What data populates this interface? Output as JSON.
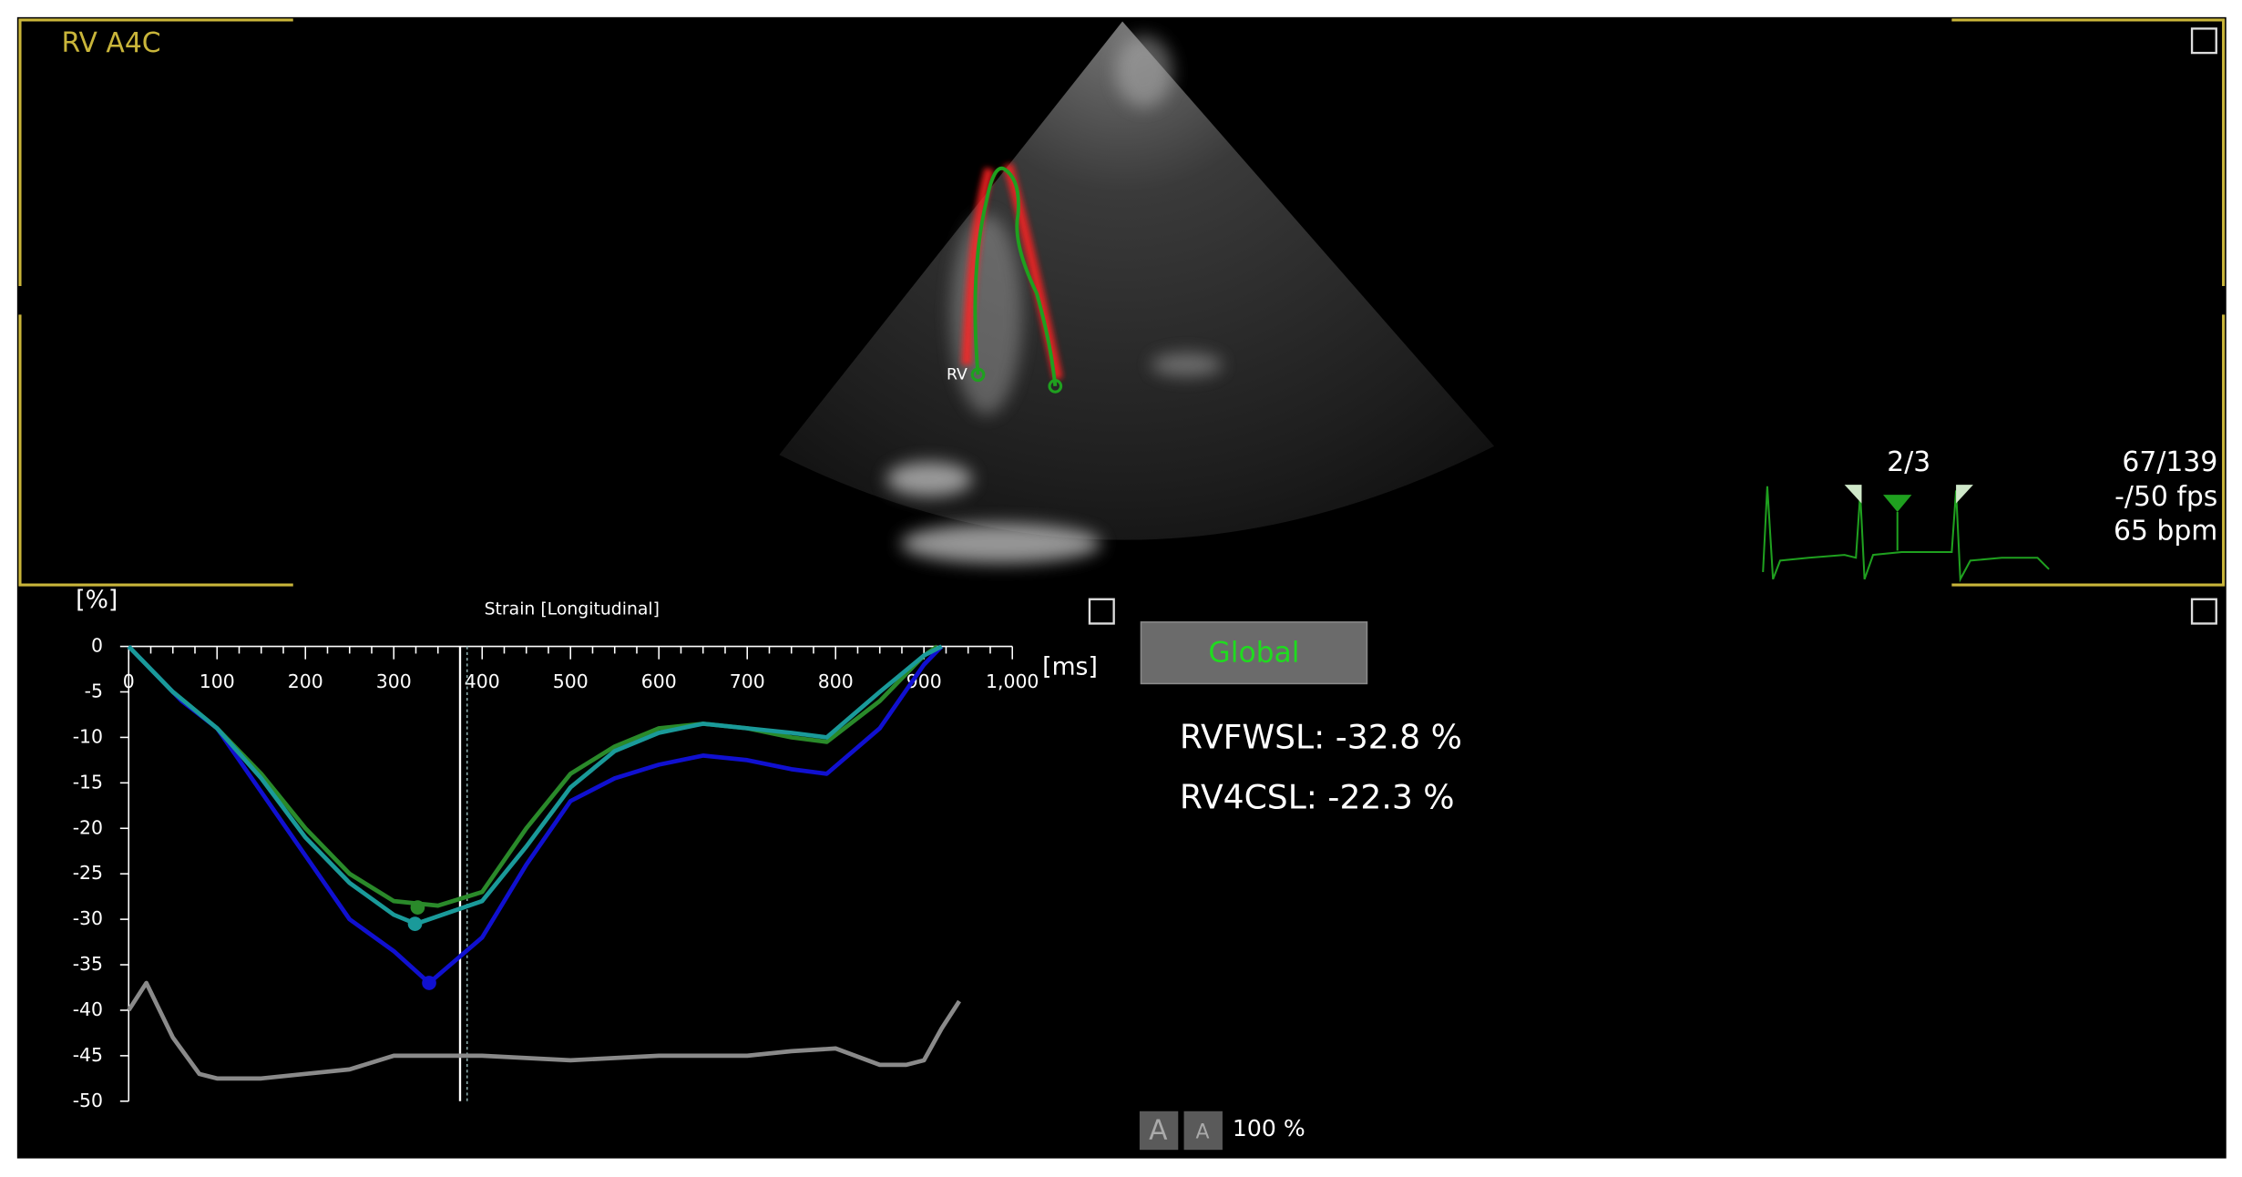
{
  "view_label": "RV A4C",
  "trace_label": "RV",
  "beat": "2/3",
  "frame": "67/139",
  "fps": "-/50 fps",
  "heart_rate": "65 bpm",
  "button": "Global",
  "results": [
    "RVFWSL: -32.8 %",
    "RV4CSL: -22.3 %"
  ],
  "zoom": {
    "buttons": [
      "A",
      "A"
    ],
    "label": "100 %"
  },
  "chart_data": {
    "type": "line",
    "title": "Strain [Longitudinal]",
    "y_label": "[%]",
    "x_label": "[ms]",
    "xlim": [
      0,
      1000
    ],
    "ylim": [
      -50,
      0
    ],
    "xticks": [
      0,
      100,
      200,
      300,
      400,
      500,
      600,
      700,
      800,
      900,
      {
        "value": 1000,
        "label": "1,000"
      }
    ],
    "yticks": [
      0,
      -5,
      -10,
      -15,
      -20,
      -25,
      -30,
      -35,
      -40,
      -45,
      -50
    ],
    "cursors": [
      375,
      383
    ],
    "series": [
      {
        "color": "#2a8a2a",
        "x": [
          0,
          50,
          100,
          150,
          200,
          250,
          300,
          350,
          400,
          450,
          500,
          550,
          600,
          650,
          700,
          750,
          790,
          850,
          900,
          915
        ],
        "values": [
          0,
          -5,
          -9,
          -14,
          -20,
          -25,
          -28,
          -28.5,
          -27,
          -20,
          -14,
          -11,
          -9,
          -8.5,
          -9,
          -10,
          -10.5,
          -6,
          -1,
          0
        ],
        "peak": [
          327,
          -28.7
        ]
      },
      {
        "color": "#1010d0",
        "x": [
          0,
          60,
          100,
          150,
          200,
          250,
          300,
          340,
          400,
          450,
          500,
          550,
          600,
          650,
          700,
          750,
          790,
          850,
          900,
          920
        ],
        "values": [
          0,
          -6,
          -9,
          -16,
          -23,
          -30,
          -33.5,
          -37,
          -32,
          -24,
          -17,
          -14.5,
          -13,
          -12,
          -12.5,
          -13.5,
          -14,
          -9,
          -2,
          0
        ],
        "peak": [
          340,
          -37
        ]
      },
      {
        "color": "#1a9a9a",
        "x": [
          0,
          50,
          100,
          150,
          200,
          250,
          300,
          325,
          400,
          450,
          500,
          550,
          600,
          650,
          700,
          750,
          790,
          850,
          900,
          920
        ],
        "values": [
          0,
          -5,
          -9,
          -14.5,
          -21,
          -26,
          -29.5,
          -30.5,
          -28,
          -22,
          -15.5,
          -11.5,
          -9.5,
          -8.5,
          -9,
          -9.5,
          -10,
          -5,
          -1,
          0
        ],
        "peak": [
          324,
          -30.5
        ]
      },
      {
        "color": "#8a8a8a",
        "x": [
          0,
          20,
          50,
          80,
          100,
          150,
          200,
          250,
          300,
          350,
          400,
          500,
          600,
          700,
          750,
          800,
          850,
          880,
          900,
          920,
          940
        ],
        "values": [
          -40,
          -37,
          -43,
          -47,
          -47.5,
          -47.5,
          -47,
          -46.5,
          -45,
          -45,
          -45,
          -45.5,
          -45,
          -45,
          -44.5,
          -44.2,
          -46,
          -46,
          -45.5,
          -42,
          -39
        ]
      }
    ]
  }
}
